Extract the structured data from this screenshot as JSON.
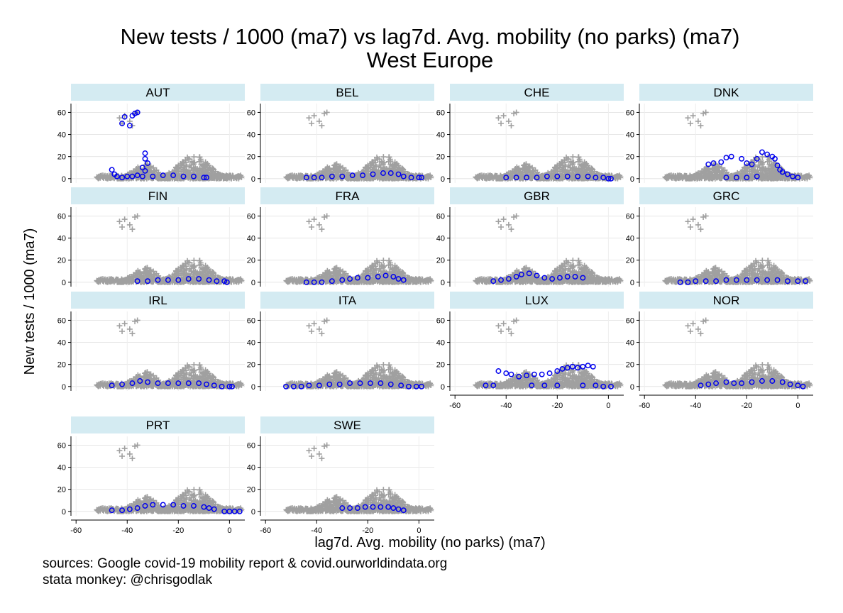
{
  "chart_data": {
    "type": "scatter",
    "title": "New tests / 1000 (ma7) vs lag7d. Avg. mobility (no parks) (ma7)",
    "subtitle": "West Europe",
    "xlabel": "lag7d. Avg. mobility (no parks) (ma7)",
    "ylabel": "New tests / 1000 (ma7)",
    "xlim": [
      -62,
      6
    ],
    "ylim": [
      -4,
      68
    ],
    "x_ticks": [
      -60,
      -40,
      -20,
      0
    ],
    "y_ticks": [
      0,
      20,
      40,
      60
    ],
    "grid": true,
    "notes": [
      "sources: Google covid-19 mobility report & covid.ourworldindata.org",
      "stata monkey: @chrisgodlak"
    ],
    "background_series": {
      "marker": "plus",
      "color": "#a0a0a0"
    },
    "highlight_series": {
      "marker": "hollow-circle",
      "color": "#0000ee"
    },
    "panels": [
      {
        "name": "AUT",
        "x_axis_shown": false,
        "points": [
          [
            -42,
            50
          ],
          [
            -41,
            56
          ],
          [
            -39,
            48
          ],
          [
            -38,
            57
          ],
          [
            -37,
            59
          ],
          [
            -36,
            60
          ],
          [
            -33,
            23
          ],
          [
            -33,
            18
          ],
          [
            -32,
            14
          ],
          [
            -34,
            10
          ],
          [
            -33,
            7
          ],
          [
            -46,
            8
          ],
          [
            -45,
            4
          ],
          [
            -44,
            2
          ],
          [
            -42,
            1
          ],
          [
            -40,
            2
          ],
          [
            -38,
            2
          ],
          [
            -36,
            3
          ],
          [
            -34,
            2
          ],
          [
            -30,
            2
          ],
          [
            -26,
            3
          ],
          [
            -22,
            3
          ],
          [
            -18,
            2
          ],
          [
            -14,
            2
          ],
          [
            -10,
            1
          ],
          [
            -9,
            1
          ]
        ]
      },
      {
        "name": "BEL",
        "x_axis_shown": false,
        "points": [
          [
            -44,
            1
          ],
          [
            -41,
            1
          ],
          [
            -38,
            1
          ],
          [
            -34,
            2
          ],
          [
            -30,
            2
          ],
          [
            -26,
            3
          ],
          [
            -22,
            3
          ],
          [
            -18,
            4
          ],
          [
            -14,
            5
          ],
          [
            -11,
            5
          ],
          [
            -8,
            4
          ],
          [
            -6,
            2
          ],
          [
            -3,
            1
          ],
          [
            0,
            1
          ],
          [
            1,
            1
          ]
        ]
      },
      {
        "name": "CHE",
        "x_axis_shown": false,
        "points": [
          [
            -40,
            1
          ],
          [
            -36,
            1
          ],
          [
            -32,
            1
          ],
          [
            -28,
            1
          ],
          [
            -24,
            2
          ],
          [
            -20,
            2
          ],
          [
            -16,
            2
          ],
          [
            -12,
            2
          ],
          [
            -8,
            2
          ],
          [
            -5,
            1
          ],
          [
            -2,
            1
          ],
          [
            0,
            0
          ],
          [
            1,
            0
          ]
        ]
      },
      {
        "name": "DNK",
        "x_axis_shown": false,
        "points": [
          [
            -35,
            13
          ],
          [
            -33,
            14
          ],
          [
            -30,
            15
          ],
          [
            -28,
            19
          ],
          [
            -26,
            20
          ],
          [
            -22,
            18
          ],
          [
            -20,
            14
          ],
          [
            -18,
            13
          ],
          [
            -16,
            18
          ],
          [
            -14,
            24
          ],
          [
            -12,
            22
          ],
          [
            -10,
            20
          ],
          [
            -9,
            18
          ],
          [
            -8,
            12
          ],
          [
            -7,
            8
          ],
          [
            -6,
            6
          ],
          [
            -4,
            4
          ],
          [
            -2,
            2
          ],
          [
            0,
            1
          ],
          [
            -24,
            1
          ],
          [
            -28,
            1
          ],
          [
            -20,
            1
          ],
          [
            -16,
            2
          ]
        ]
      },
      {
        "name": "FIN",
        "x_axis_shown": false,
        "points": [
          [
            -36,
            1
          ],
          [
            -32,
            1
          ],
          [
            -28,
            2
          ],
          [
            -24,
            2
          ],
          [
            -20,
            2
          ],
          [
            -16,
            3
          ],
          [
            -12,
            3
          ],
          [
            -8,
            2
          ],
          [
            -5,
            1
          ],
          [
            -2,
            1
          ],
          [
            -1,
            0
          ]
        ]
      },
      {
        "name": "FRA",
        "x_axis_shown": false,
        "points": [
          [
            -44,
            0
          ],
          [
            -41,
            0
          ],
          [
            -38,
            0
          ],
          [
            -34,
            1
          ],
          [
            -30,
            2
          ],
          [
            -27,
            3
          ],
          [
            -24,
            4
          ],
          [
            -20,
            4
          ],
          [
            -16,
            5
          ],
          [
            -13,
            6
          ],
          [
            -10,
            5
          ],
          [
            -8,
            3
          ],
          [
            -6,
            2
          ]
        ]
      },
      {
        "name": "GBR",
        "x_axis_shown": false,
        "points": [
          [
            -45,
            1
          ],
          [
            -42,
            2
          ],
          [
            -39,
            3
          ],
          [
            -36,
            5
          ],
          [
            -34,
            7
          ],
          [
            -31,
            8
          ],
          [
            -28,
            6
          ],
          [
            -25,
            4
          ],
          [
            -22,
            3
          ],
          [
            -19,
            4
          ],
          [
            -16,
            5
          ],
          [
            -13,
            5
          ],
          [
            -10,
            4
          ]
        ]
      },
      {
        "name": "GRC",
        "x_axis_shown": false,
        "points": [
          [
            -46,
            0
          ],
          [
            -43,
            0
          ],
          [
            -40,
            1
          ],
          [
            -36,
            1
          ],
          [
            -32,
            1
          ],
          [
            -28,
            2
          ],
          [
            -24,
            2
          ],
          [
            -20,
            2
          ],
          [
            -16,
            2
          ],
          [
            -12,
            2
          ],
          [
            -8,
            2
          ],
          [
            -4,
            1
          ],
          [
            0,
            1
          ],
          [
            3,
            1
          ]
        ]
      },
      {
        "name": "IRL",
        "x_axis_shown": false,
        "points": [
          [
            -46,
            1
          ],
          [
            -42,
            2
          ],
          [
            -38,
            3
          ],
          [
            -35,
            5
          ],
          [
            -32,
            4
          ],
          [
            -28,
            3
          ],
          [
            -24,
            3
          ],
          [
            -20,
            3
          ],
          [
            -16,
            3
          ],
          [
            -12,
            3
          ],
          [
            -9,
            2
          ],
          [
            -6,
            1
          ],
          [
            -3,
            0
          ],
          [
            0,
            0
          ],
          [
            1,
            0
          ]
        ]
      },
      {
        "name": "ITA",
        "x_axis_shown": false,
        "points": [
          [
            -52,
            0
          ],
          [
            -49,
            0
          ],
          [
            -46,
            0
          ],
          [
            -43,
            1
          ],
          [
            -39,
            1
          ],
          [
            -35,
            2
          ],
          [
            -31,
            2
          ],
          [
            -27,
            3
          ],
          [
            -23,
            3
          ],
          [
            -19,
            3
          ],
          [
            -15,
            3
          ],
          [
            -11,
            2
          ],
          [
            -7,
            1
          ],
          [
            -4,
            0
          ],
          [
            -1,
            0
          ],
          [
            1,
            0
          ]
        ]
      },
      {
        "name": "LUX",
        "x_axis_shown": true,
        "points": [
          [
            -48,
            1
          ],
          [
            -45,
            1
          ],
          [
            -43,
            14
          ],
          [
            -40,
            12
          ],
          [
            -38,
            11
          ],
          [
            -35,
            9
          ],
          [
            -32,
            10
          ],
          [
            -29,
            11
          ],
          [
            -26,
            11
          ],
          [
            -23,
            12
          ],
          [
            -20,
            14
          ],
          [
            -18,
            16
          ],
          [
            -16,
            17
          ],
          [
            -14,
            18
          ],
          [
            -12,
            17
          ],
          [
            -10,
            18
          ],
          [
            -8,
            19
          ],
          [
            -6,
            18
          ],
          [
            -30,
            1
          ],
          [
            -25,
            1
          ],
          [
            -20,
            1
          ],
          [
            -10,
            1
          ],
          [
            -5,
            1
          ],
          [
            -2,
            0
          ],
          [
            1,
            0
          ]
        ]
      },
      {
        "name": "NOR",
        "x_axis_shown": true,
        "points": [
          [
            -38,
            1
          ],
          [
            -35,
            2
          ],
          [
            -32,
            3
          ],
          [
            -28,
            4
          ],
          [
            -25,
            3
          ],
          [
            -22,
            3
          ],
          [
            -18,
            4
          ],
          [
            -14,
            5
          ],
          [
            -10,
            5
          ],
          [
            -6,
            4
          ],
          [
            -3,
            2
          ],
          [
            0,
            1
          ],
          [
            2,
            0
          ]
        ]
      },
      {
        "name": "PRT",
        "x_axis_shown": true,
        "points": [
          [
            -46,
            1
          ],
          [
            -42,
            1
          ],
          [
            -39,
            2
          ],
          [
            -36,
            3
          ],
          [
            -33,
            5
          ],
          [
            -30,
            6
          ],
          [
            -26,
            6
          ],
          [
            -22,
            6
          ],
          [
            -18,
            5
          ],
          [
            -14,
            5
          ],
          [
            -10,
            4
          ],
          [
            -8,
            3
          ],
          [
            -6,
            2
          ],
          [
            -2,
            0
          ],
          [
            0,
            0
          ],
          [
            2,
            0
          ],
          [
            4,
            0
          ]
        ]
      },
      {
        "name": "SWE",
        "x_axis_shown": true,
        "points": [
          [
            -30,
            3
          ],
          [
            -27,
            3
          ],
          [
            -24,
            3
          ],
          [
            -21,
            4
          ],
          [
            -18,
            4
          ],
          [
            -15,
            4
          ],
          [
            -12,
            4
          ],
          [
            -10,
            3
          ],
          [
            -8,
            2
          ],
          [
            -6,
            1
          ]
        ]
      }
    ]
  }
}
